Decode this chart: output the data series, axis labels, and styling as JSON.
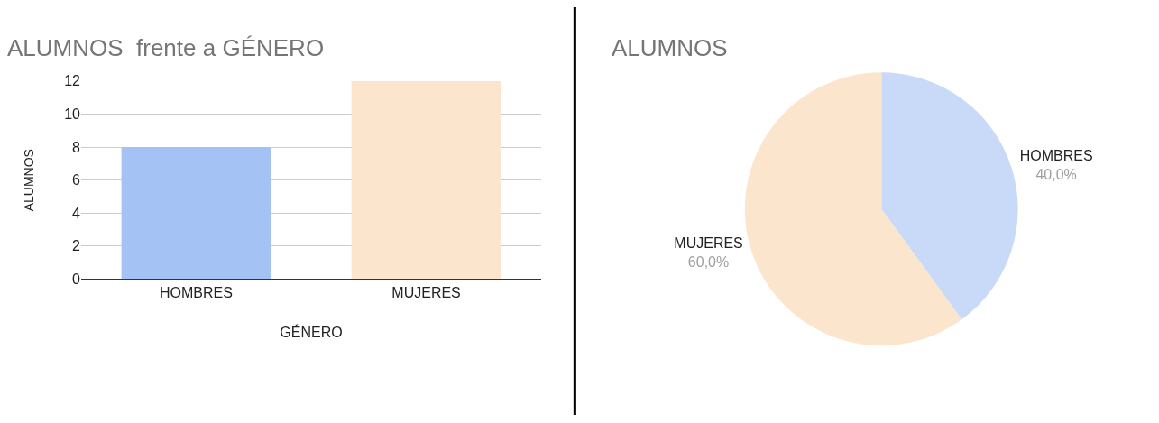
{
  "chart_data": [
    {
      "type": "bar",
      "title": "ALUMNOS  frente a GÉNERO",
      "xlabel": "GÉNERO",
      "ylabel": "ALUMNOS",
      "categories": [
        "HOMBRES",
        "MUJERES"
      ],
      "values": [
        8,
        12
      ],
      "colors": [
        "#a4c2f4",
        "#fce5cd"
      ],
      "ylim": [
        0,
        12
      ],
      "yticks": [
        0,
        2,
        4,
        6,
        8,
        10,
        12
      ],
      "grid": "y"
    },
    {
      "type": "pie",
      "title": "ALUMNOS",
      "categories": [
        "HOMBRES",
        "MUJERES"
      ],
      "values": [
        40,
        60
      ],
      "colors": [
        "#c9daf8",
        "#fce5cd"
      ],
      "value_labels": [
        "40,0%",
        "60,0%"
      ]
    }
  ]
}
